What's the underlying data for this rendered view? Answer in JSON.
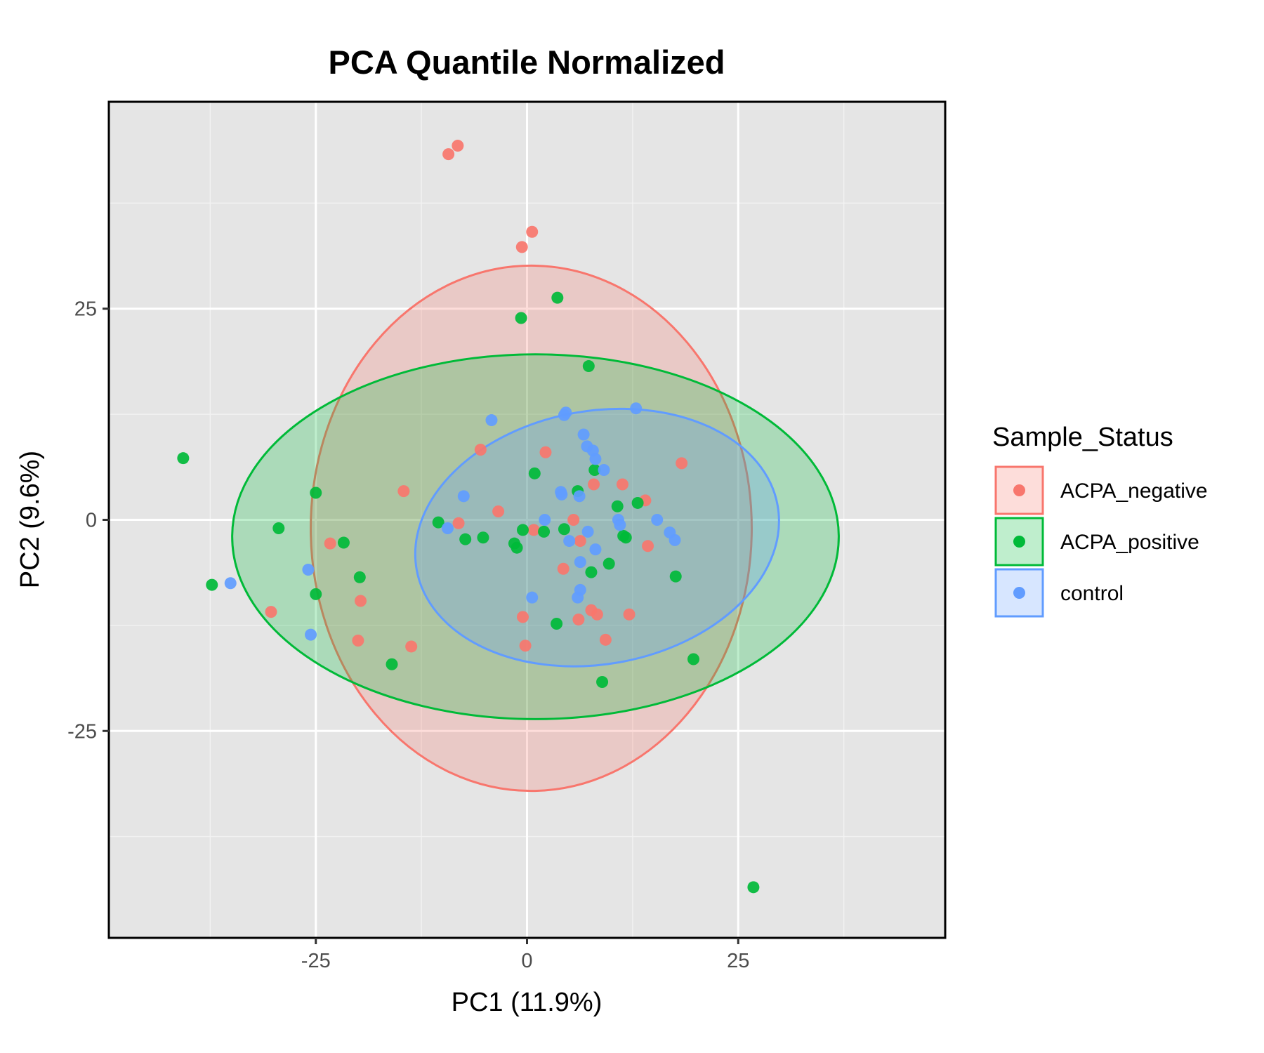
{
  "chart_data": {
    "type": "scatter",
    "title": "PCA Quantile Normalized",
    "xlabel": "PC1 (11.9%)",
    "ylabel": "PC2 (9.6%)",
    "xlim": [
      -49.5,
      49.5
    ],
    "ylim": [
      -49.5,
      49.5
    ],
    "xticks": [
      -25,
      0,
      25
    ],
    "yticks": [
      -25,
      0,
      25
    ],
    "minor_ticks": [
      -37.5,
      -12.5,
      12.5,
      37.5
    ],
    "grid": true,
    "legend_title": "Sample_Status",
    "legend_position": "right",
    "series": [
      {
        "name": "ACPA_negative",
        "color": "#F8766D",
        "points": [
          [
            -9.3,
            43.3
          ],
          [
            -8.2,
            44.3
          ],
          [
            0.6,
            34.1
          ],
          [
            -0.6,
            32.3
          ],
          [
            -5.5,
            8.3
          ],
          [
            2.2,
            8.0
          ],
          [
            18.3,
            6.7
          ],
          [
            11.3,
            4.2
          ],
          [
            7.9,
            4.2
          ],
          [
            14.0,
            2.3
          ],
          [
            -14.6,
            3.4
          ],
          [
            -3.4,
            1.0
          ],
          [
            5.5,
            0.0
          ],
          [
            -8.1,
            -0.4
          ],
          [
            0.8,
            -1.2
          ],
          [
            6.3,
            -2.5
          ],
          [
            -23.3,
            -2.8
          ],
          [
            14.3,
            -3.1
          ],
          [
            4.3,
            -5.8
          ],
          [
            -19.7,
            -9.6
          ],
          [
            -30.3,
            -10.9
          ],
          [
            -0.5,
            -11.5
          ],
          [
            6.1,
            -11.8
          ],
          [
            7.6,
            -10.7
          ],
          [
            8.3,
            -11.2
          ],
          [
            12.1,
            -11.2
          ],
          [
            9.3,
            -14.2
          ],
          [
            -0.2,
            -14.9
          ],
          [
            -20.0,
            -14.3
          ],
          [
            -13.7,
            -15.0
          ]
        ]
      },
      {
        "name": "ACPA_positive",
        "color": "#00BA38",
        "points": [
          [
            3.6,
            26.3
          ],
          [
            -0.7,
            23.9
          ],
          [
            7.3,
            18.2
          ],
          [
            -40.7,
            7.3
          ],
          [
            0.9,
            5.5
          ],
          [
            8.0,
            5.9
          ],
          [
            -25.0,
            3.2
          ],
          [
            6.0,
            3.4
          ],
          [
            10.7,
            1.6
          ],
          [
            13.1,
            2.0
          ],
          [
            -10.5,
            -0.3
          ],
          [
            -0.5,
            -1.2
          ],
          [
            2.0,
            -1.4
          ],
          [
            4.4,
            -1.1
          ],
          [
            -7.3,
            -2.3
          ],
          [
            -5.2,
            -2.1
          ],
          [
            -1.5,
            -2.8
          ],
          [
            -1.2,
            -3.3
          ],
          [
            -21.7,
            -2.7
          ],
          [
            -29.4,
            -1.0
          ],
          [
            11.4,
            -1.9
          ],
          [
            11.7,
            -2.1
          ],
          [
            9.7,
            -5.2
          ],
          [
            7.6,
            -6.2
          ],
          [
            17.6,
            -6.7
          ],
          [
            -19.8,
            -6.8
          ],
          [
            -37.3,
            -7.7
          ],
          [
            -25.0,
            -8.8
          ],
          [
            3.5,
            -12.3
          ],
          [
            -16.0,
            -17.1
          ],
          [
            8.9,
            -19.2
          ],
          [
            19.7,
            -16.5
          ],
          [
            26.8,
            -43.5
          ]
        ]
      },
      {
        "name": "control",
        "color": "#619CFF",
        "points": [
          [
            12.9,
            13.2
          ],
          [
            4.6,
            12.7
          ],
          [
            4.4,
            12.4
          ],
          [
            -4.2,
            11.8
          ],
          [
            6.7,
            10.1
          ],
          [
            7.1,
            8.7
          ],
          [
            7.8,
            8.2
          ],
          [
            8.1,
            7.2
          ],
          [
            9.1,
            5.9
          ],
          [
            4.0,
            3.3
          ],
          [
            4.1,
            3.0
          ],
          [
            6.2,
            2.8
          ],
          [
            -7.5,
            2.8
          ],
          [
            2.1,
            0.0
          ],
          [
            10.8,
            0.0
          ],
          [
            11.0,
            -0.6
          ],
          [
            15.4,
            0.0
          ],
          [
            16.9,
            -1.5
          ],
          [
            17.5,
            -2.4
          ],
          [
            -9.4,
            -1.0
          ],
          [
            5.0,
            -2.5
          ],
          [
            7.2,
            -1.4
          ],
          [
            8.1,
            -3.5
          ],
          [
            6.3,
            -5.0
          ],
          [
            -25.9,
            -5.9
          ],
          [
            -35.1,
            -7.5
          ],
          [
            6.3,
            -8.3
          ],
          [
            0.6,
            -9.2
          ],
          [
            6.0,
            -9.2
          ],
          [
            -25.6,
            -13.6
          ]
        ]
      }
    ],
    "ellipses": [
      {
        "series": "ACPA_negative",
        "cx": 0.5,
        "cy": -1.0,
        "rx": 26.1,
        "ry": 31.1,
        "fill": "#F8766D",
        "stroke": "#F8766D"
      },
      {
        "series": "ACPA_positive",
        "cx": 1.0,
        "cy": -2.0,
        "rx": 35.9,
        "ry": 21.6,
        "fill": "#00BA38",
        "stroke": "#00BA38"
      },
      {
        "series": "control",
        "cx": 8.3,
        "cy": -2.1,
        "rx": 21.7,
        "ry": 15.0,
        "fill": "#619CFF",
        "stroke": "#619CFF",
        "rotation": 10
      }
    ]
  }
}
